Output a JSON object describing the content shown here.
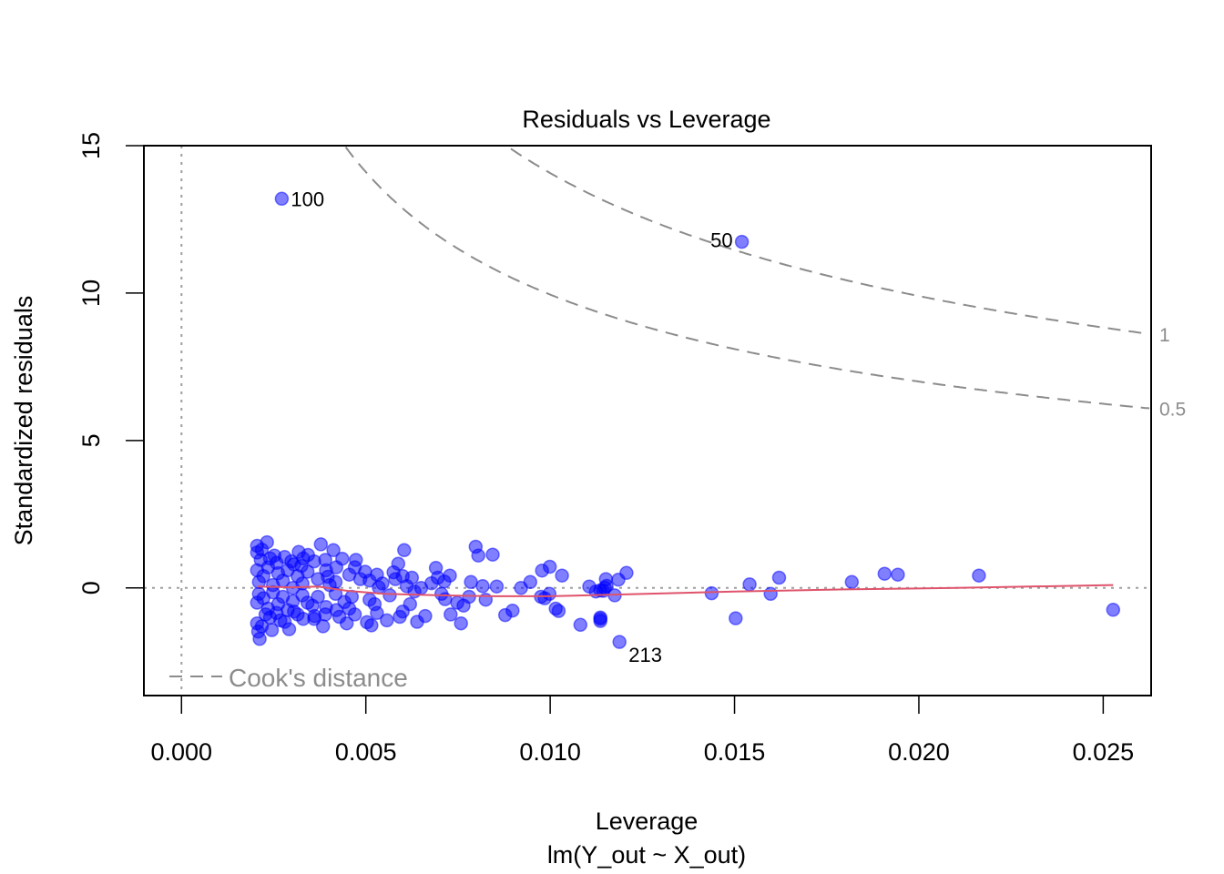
{
  "chart_data": {
    "type": "scatter",
    "title": "Residuals vs Leverage",
    "xlabel": "Leverage",
    "sublabel": "lm(Y_out ~ X_out)",
    "ylabel": "Standardized residuals",
    "xlim": [
      -0.00102,
      0.0263
    ],
    "ylim": [
      -3.65,
      15.0
    ],
    "x_ticks": [
      0.0,
      0.005,
      0.01,
      0.015,
      0.02,
      0.025
    ],
    "x_tick_labels": [
      "0.000",
      "0.005",
      "0.010",
      "0.015",
      "0.020",
      "0.025"
    ],
    "y_ticks": [
      0,
      5,
      10,
      15
    ],
    "y_tick_labels": [
      "0",
      "5",
      "10",
      "15"
    ],
    "point_color": "#0000FF",
    "point_alpha": 0.5,
    "smooth_color": "#DF536B",
    "reference_color": "#9E9E9E",
    "cooks_color": "#8C8C8C",
    "legend": {
      "label": "Cook's distance",
      "position": "bottom-left"
    },
    "cooks_levels": [
      {
        "level": 0.5,
        "label": "0.5"
      },
      {
        "level": 1,
        "label": "1"
      }
    ],
    "cooks_p": 2,
    "labeled_points": [
      {
        "label": "100",
        "x": 0.00272,
        "y": 13.2,
        "side": "right"
      },
      {
        "label": "50",
        "x": 0.0152,
        "y": 11.74,
        "side": "left"
      },
      {
        "label": "213",
        "x": 0.01188,
        "y": -1.83,
        "side": "right-below"
      }
    ],
    "points": [
      [
        0.00272,
        13.2
      ],
      [
        0.0152,
        11.74
      ],
      [
        0.01188,
        -1.83
      ],
      [
        0.02527,
        -0.74
      ],
      [
        0.02163,
        0.42
      ],
      [
        0.01943,
        0.45
      ],
      [
        0.01907,
        0.48
      ],
      [
        0.01818,
        0.2
      ],
      [
        0.01621,
        0.35
      ],
      [
        0.01598,
        -0.2
      ],
      [
        0.01541,
        0.12
      ],
      [
        0.01503,
        -1.03
      ],
      [
        0.01438,
        -0.18
      ],
      [
        0.01207,
        0.51
      ],
      [
        0.01185,
        0.28
      ],
      [
        0.01175,
        -0.25
      ],
      [
        0.01153,
        0.07
      ],
      [
        0.01124,
        -0.12
      ],
      [
        0.01144,
        -0.1
      ],
      [
        0.01148,
        0.01
      ],
      [
        0.01136,
        -0.08
      ],
      [
        0.01082,
        -1.25
      ],
      [
        0.01151,
        0.3
      ],
      [
        0.01136,
        -1.0
      ],
      [
        0.01136,
        -1.12
      ],
      [
        0.01136,
        -1.05
      ],
      [
        0.01106,
        0.05
      ],
      [
        0.01032,
        0.42
      ],
      [
        0.01015,
        -0.7
      ],
      [
        0.01023,
        -0.78
      ],
      [
        0.00999,
        0.72
      ],
      [
        0.00978,
        0.59
      ],
      [
        0.00985,
        -0.35
      ],
      [
        0.00975,
        -0.3
      ],
      [
        0.00998,
        -0.2
      ],
      [
        0.00946,
        0.2
      ],
      [
        0.00921,
        0.0
      ],
      [
        0.00898,
        -0.77
      ],
      [
        0.00878,
        -0.92
      ],
      [
        0.00844,
        1.13
      ],
      [
        0.00805,
        1.1
      ],
      [
        0.00798,
        1.4
      ],
      [
        0.00817,
        0.06
      ],
      [
        0.00785,
        0.2
      ],
      [
        0.00765,
        -0.6
      ],
      [
        0.00748,
        -0.5
      ],
      [
        0.00758,
        -1.2
      ],
      [
        0.00728,
        0.42
      ],
      [
        0.00715,
        -0.38
      ],
      [
        0.00713,
        0.22
      ],
      [
        0.00695,
        0.35
      ],
      [
        0.0069,
        0.68
      ],
      [
        0.00678,
        0.16
      ],
      [
        0.00661,
        -0.95
      ],
      [
        0.00639,
        -1.15
      ],
      [
        0.00632,
        -0.12
      ],
      [
        0.00625,
        0.35
      ],
      [
        0.00611,
        0.06
      ],
      [
        0.00604,
        1.28
      ],
      [
        0.00592,
        -0.98
      ],
      [
        0.00588,
        0.82
      ],
      [
        0.00575,
        0.53
      ],
      [
        0.00557,
        -1.1
      ],
      [
        0.00535,
        0.02
      ],
      [
        0.00524,
        -0.55
      ],
      [
        0.00515,
        -1.27
      ],
      [
        0.00503,
        -1.16
      ],
      [
        0.00498,
        0.55
      ],
      [
        0.00473,
        0.95
      ],
      [
        0.00448,
        -1.2
      ],
      [
        0.00436,
        0.99
      ],
      [
        0.00428,
        -0.98
      ],
      [
        0.00412,
        1.28
      ],
      [
        0.00397,
        0.38
      ],
      [
        0.00384,
        -1.3
      ],
      [
        0.00378,
        1.48
      ],
      [
        0.00343,
        1.12
      ],
      [
        0.00318,
        1.22
      ],
      [
        0.00232,
        1.55
      ],
      [
        0.00205,
        1.43
      ],
      [
        0.00208,
        -1.48
      ],
      [
        0.00212,
        -1.73
      ],
      [
        0.00245,
        -1.43
      ],
      [
        0.00292,
        -1.4
      ],
      [
        0.00361,
        -0.95
      ],
      [
        0.00442,
        -0.48
      ],
      [
        0.00485,
        0.3
      ],
      [
        0.00545,
        0.15
      ],
      [
        0.00462,
        -0.3
      ],
      [
        0.00402,
        0.1
      ],
      [
        0.00355,
        -0.6
      ],
      [
        0.00325,
        0.75
      ],
      [
        0.00298,
        0.9
      ],
      [
        0.00268,
        -1.1
      ],
      [
        0.00252,
        1.1
      ],
      [
        0.00228,
        -0.9
      ],
      [
        0.00215,
        0.95
      ],
      [
        0.00205,
        0.6
      ],
      [
        0.00205,
        -0.5
      ],
      [
        0.0021,
        0.2
      ],
      [
        0.0021,
        -0.2
      ],
      [
        0.00222,
        0.4
      ],
      [
        0.00222,
        -0.35
      ],
      [
        0.00235,
        0.7
      ],
      [
        0.00235,
        -0.7
      ],
      [
        0.00248,
        0.1
      ],
      [
        0.00248,
        -0.15
      ],
      [
        0.00262,
        0.5
      ],
      [
        0.00262,
        -0.55
      ],
      [
        0.00275,
        0.25
      ],
      [
        0.00275,
        -0.3
      ],
      [
        0.00288,
        0.6
      ],
      [
        0.00288,
        -0.75
      ],
      [
        0.00302,
        0.0
      ],
      [
        0.00302,
        -0.45
      ],
      [
        0.00315,
        0.4
      ],
      [
        0.00315,
        -0.9
      ],
      [
        0.00328,
        0.15
      ],
      [
        0.00328,
        -0.25
      ],
      [
        0.00342,
        0.55
      ],
      [
        0.00342,
        -0.5
      ],
      [
        0.0037,
        0.3
      ],
      [
        0.0037,
        -0.3
      ],
      [
        0.00392,
        0.6
      ],
      [
        0.00392,
        -0.65
      ],
      [
        0.00418,
        0.2
      ],
      [
        0.00418,
        -0.2
      ],
      [
        0.00455,
        0.45
      ],
      [
        0.00455,
        -0.7
      ],
      [
        0.0051,
        0.25
      ],
      [
        0.0051,
        -0.4
      ],
      [
        0.00565,
        -0.25
      ],
      [
        0.0058,
        0.3
      ],
      [
        0.0062,
        -0.55
      ],
      [
        0.0065,
        0.0
      ],
      [
        0.00705,
        -0.2
      ],
      [
        0.0073,
        -0.9
      ],
      [
        0.0078,
        -0.3
      ],
      [
        0.00825,
        -0.4
      ],
      [
        0.00855,
        0.05
      ],
      [
        0.00205,
        1.2
      ],
      [
        0.00205,
        -1.2
      ],
      [
        0.00218,
        1.3
      ],
      [
        0.00218,
        -1.3
      ],
      [
        0.0024,
        1.0
      ],
      [
        0.0024,
        -1.0
      ],
      [
        0.00258,
        0.85
      ],
      [
        0.00258,
        -0.85
      ],
      [
        0.0028,
        1.05
      ],
      [
        0.0028,
        -1.15
      ],
      [
        0.00305,
        0.8
      ],
      [
        0.00305,
        -0.8
      ],
      [
        0.0033,
        1.0
      ],
      [
        0.0033,
        -1.05
      ],
      [
        0.0036,
        0.9
      ],
      [
        0.0036,
        -1.05
      ],
      [
        0.0039,
        0.95
      ],
      [
        0.0039,
        -0.9
      ],
      [
        0.0042,
        0.7
      ],
      [
        0.0042,
        -0.75
      ],
      [
        0.0047,
        0.7
      ],
      [
        0.0047,
        -0.9
      ],
      [
        0.0053,
        0.45
      ],
      [
        0.0053,
        -0.85
      ],
      [
        0.006,
        0.4
      ],
      [
        0.006,
        -0.8
      ]
    ],
    "smooth_line": [
      [
        0.00205,
        0.05
      ],
      [
        0.003,
        0.02
      ],
      [
        0.0037,
        0.05
      ],
      [
        0.0045,
        -0.1
      ],
      [
        0.0055,
        -0.2
      ],
      [
        0.007,
        -0.25
      ],
      [
        0.0085,
        -0.28
      ],
      [
        0.01,
        -0.28
      ],
      [
        0.012,
        -0.22
      ],
      [
        0.015,
        -0.12
      ],
      [
        0.018,
        -0.05
      ],
      [
        0.021,
        0.0
      ],
      [
        0.02527,
        0.1
      ]
    ]
  }
}
